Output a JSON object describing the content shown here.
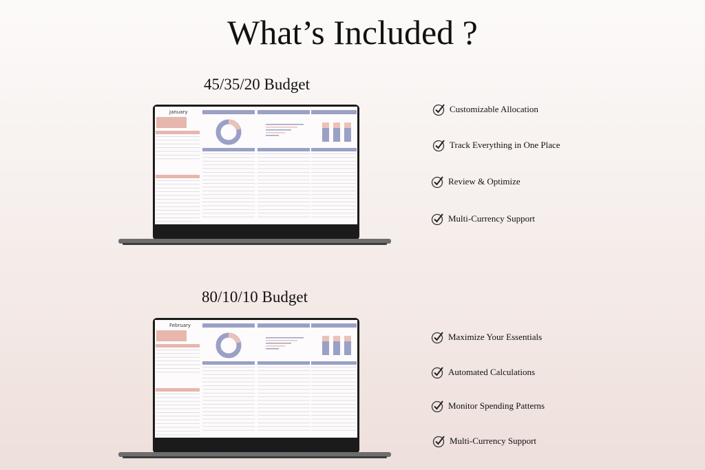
{
  "header": {
    "title": "What’s Included ?"
  },
  "sections": [
    {
      "title": "45/35/20 Budget",
      "month": "January",
      "features": [
        "Customizable Allocation",
        "Track Everything in One Place",
        "Review & Optimize",
        "Multi-Currency Support"
      ]
    },
    {
      "title": "80/10/10 Budget",
      "month": "February",
      "features": [
        "Maximize Your Essentials",
        "Automated Calculations",
        "Monitor Spending Patterns",
        "Multi-Currency Support"
      ]
    }
  ]
}
